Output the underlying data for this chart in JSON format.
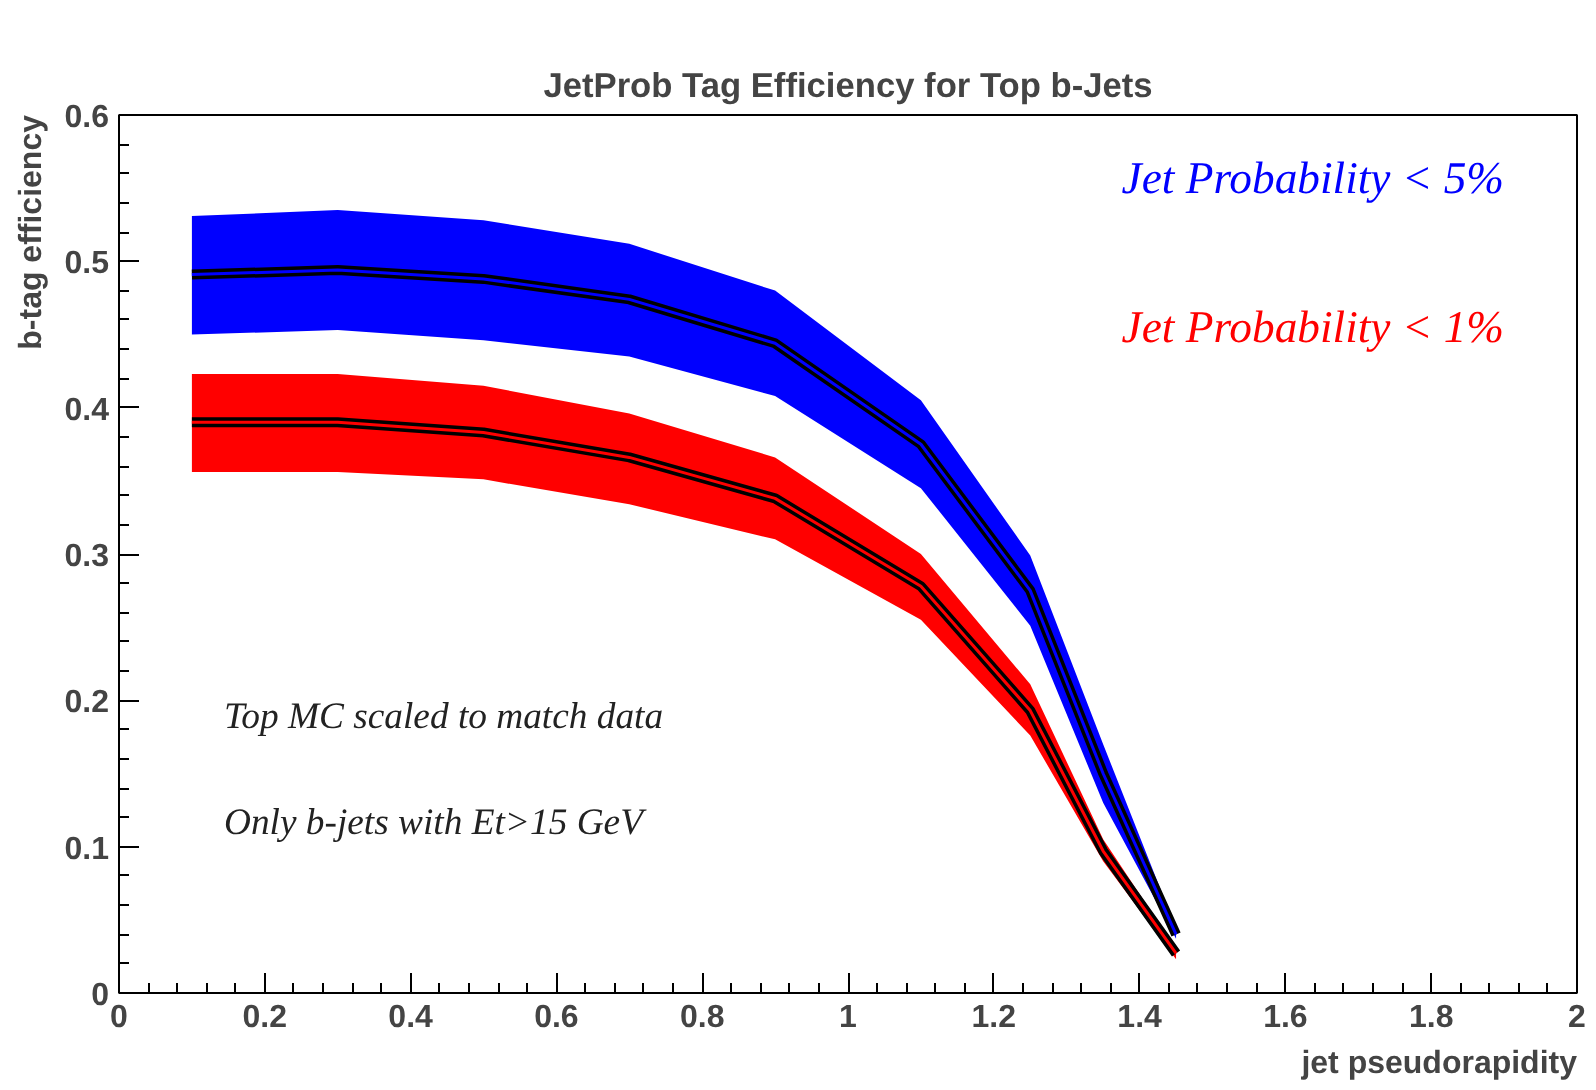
{
  "chart_data": {
    "type": "line",
    "title": "JetProb Tag Efficiency for Top b-Jets",
    "xlabel": "jet pseudorapidity",
    "ylabel": "b-tag efficiency",
    "x": [
      0.1,
      0.3,
      0.5,
      0.7,
      0.9,
      1.1,
      1.25,
      1.35,
      1.45
    ],
    "series": [
      {
        "name": "Jet Probability < 5%",
        "color": "#0000ff",
        "values": [
          0.491,
          0.494,
          0.488,
          0.474,
          0.444,
          0.375,
          0.275,
          0.15,
          0.04
        ],
        "lower": [
          0.45,
          0.453,
          0.446,
          0.435,
          0.408,
          0.345,
          0.251,
          0.13,
          0.037
        ],
        "upper": [
          0.531,
          0.535,
          0.528,
          0.512,
          0.48,
          0.405,
          0.299,
          0.17,
          0.044
        ]
      },
      {
        "name": "Jet Probability < 1%",
        "color": "#ff0000",
        "values": [
          0.39,
          0.39,
          0.383,
          0.366,
          0.338,
          0.278,
          0.193,
          0.097,
          0.027
        ],
        "lower": [
          0.356,
          0.356,
          0.351,
          0.334,
          0.31,
          0.255,
          0.176,
          0.09,
          0.023
        ],
        "upper": [
          0.423,
          0.423,
          0.415,
          0.396,
          0.366,
          0.3,
          0.211,
          0.105,
          0.03
        ]
      }
    ],
    "annotations": [
      "Top MC scaled to match data",
      "Only b-jets with Et>15 GeV"
    ],
    "xlim": [
      0,
      2
    ],
    "ylim": [
      0,
      0.6
    ],
    "xticks": [
      0,
      0.2,
      0.4,
      0.6,
      0.8,
      1,
      1.2,
      1.4,
      1.6,
      1.8,
      2
    ],
    "yticks": [
      0,
      0.1,
      0.2,
      0.3,
      0.4,
      0.5,
      0.6
    ],
    "grid": false,
    "legend": "top right",
    "marker": "none",
    "line_style": "solid"
  }
}
